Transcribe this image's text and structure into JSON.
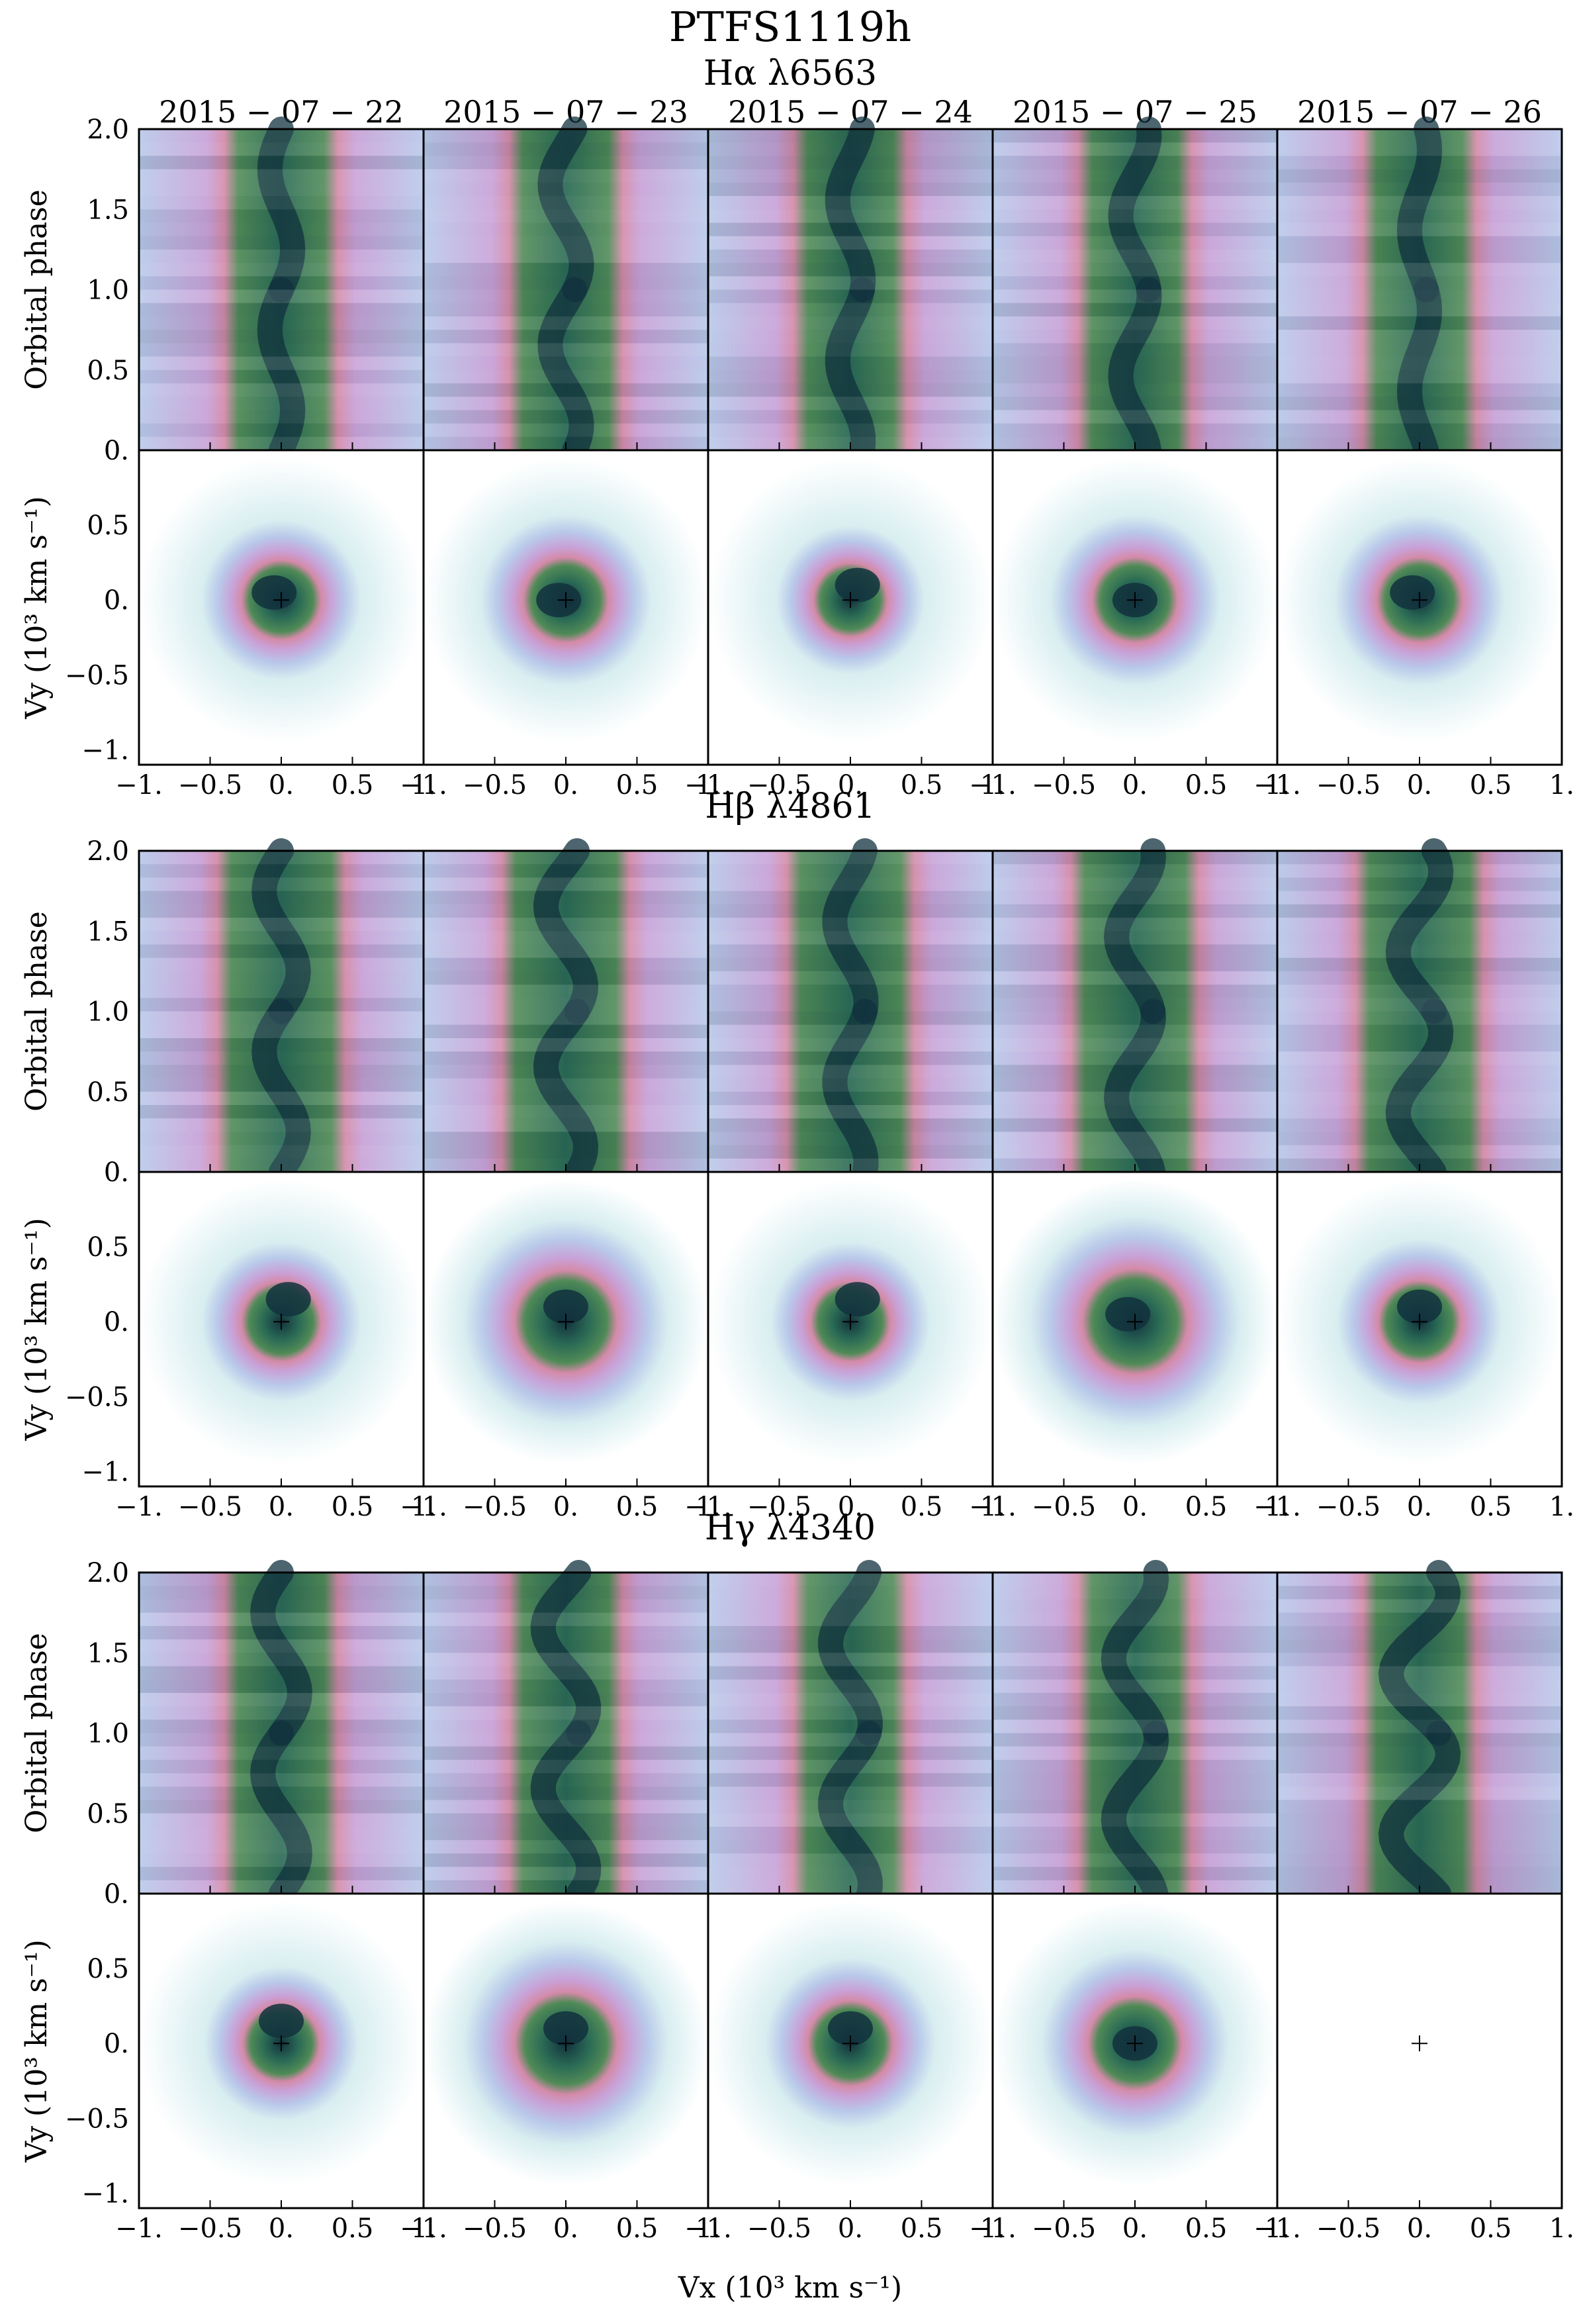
{
  "figure": {
    "title": "PTFS1119h",
    "dates": [
      "2015 − 07 − 22",
      "2015 − 07 − 23",
      "2015 − 07 − 24",
      "2015 − 07 − 25",
      "2015 − 07 − 26"
    ],
    "colormap": [
      "#ffffff",
      "#d8eef0",
      "#b9c9ea",
      "#c8a2d8",
      "#d48aa8",
      "#4f8a56",
      "#2a6a55",
      "#12313d"
    ],
    "marker": "+"
  },
  "chart_data": {
    "type": "heatmap",
    "title": "PTFS1119h",
    "panels_per_line": 5,
    "lines": [
      {
        "name": "Hα λ6563",
        "label": "Hα λ6563",
        "trailed_spectra": {
          "ylabel": "Orbital phase",
          "ylim": [
            0.0,
            2.0
          ],
          "yticks": [
            "0.",
            "0.5",
            "1.0",
            "1.5",
            "2.0"
          ],
          "xlim": [
            -1.0,
            1.0
          ],
          "emission_halfwidth_kms": 400,
          "s_wave_amplitude_kms": [
            80,
            110,
            90,
            100,
            70
          ]
        },
        "doppler_maps": {
          "ylabel": "Vy (10³ km s⁻¹)",
          "ylim": [
            -1.1,
            1.0
          ],
          "yticks": [
            "−1.",
            "−0.5",
            "0.",
            "0.5"
          ],
          "xlim": [
            -1.0,
            1.0
          ],
          "ring_radius_kms": [
            280,
            300,
            260,
            300,
            300
          ],
          "bright_spot_vxvy": [
            [
              -0.05,
              0.05
            ],
            [
              -0.05,
              0.0
            ],
            [
              0.05,
              0.1
            ],
            [
              0.0,
              0.0
            ],
            [
              -0.05,
              0.05
            ]
          ],
          "empty": [
            false,
            false,
            false,
            false,
            false
          ]
        }
      },
      {
        "name": "Hβ λ4861",
        "label": "Hβ λ4861",
        "trailed_spectra": {
          "ylabel": "Orbital phase",
          "ylim": [
            0.0,
            2.0
          ],
          "yticks": [
            "0.",
            "0.5",
            "1.0",
            "1.5",
            "2.0"
          ],
          "xlim": [
            -1.0,
            1.0
          ],
          "emission_halfwidth_kms": 450,
          "s_wave_amplitude_kms": [
            120,
            140,
            110,
            130,
            150
          ]
        },
        "doppler_maps": {
          "ylabel": "Vy (10³ km s⁻¹)",
          "ylim": [
            -1.1,
            1.0
          ],
          "yticks": [
            "−1.",
            "−0.5",
            "0.",
            "0.5"
          ],
          "xlim": [
            -1.0,
            1.0
          ],
          "ring_radius_kms": [
            280,
            360,
            280,
            370,
            290
          ],
          "bright_spot_vxvy": [
            [
              0.05,
              0.15
            ],
            [
              0.0,
              0.1
            ],
            [
              0.05,
              0.15
            ],
            [
              -0.05,
              0.05
            ],
            [
              0.0,
              0.1
            ]
          ],
          "empty": [
            false,
            false,
            false,
            false,
            false
          ]
        }
      },
      {
        "name": "Hγ λ4340",
        "label": "Hγ λ4340",
        "trailed_spectra": {
          "ylabel": "Orbital phase",
          "ylim": [
            0.0,
            2.0
          ],
          "yticks": [
            "0.",
            "0.5",
            "1.0",
            "1.5",
            "2.0"
          ],
          "xlim": [
            -1.0,
            1.0
          ],
          "emission_halfwidth_kms": 400,
          "s_wave_amplitude_kms": [
            130,
            160,
            140,
            150,
            200
          ]
        },
        "doppler_maps": {
          "ylabel": "Vy (10³ km s⁻¹)",
          "ylim": [
            -1.1,
            1.0
          ],
          "yticks": [
            "−1.",
            "−0.5",
            "0.",
            "0.5"
          ],
          "xlim": [
            -1.0,
            1.0
          ],
          "ring_radius_kms": [
            270,
            360,
            300,
            330,
            0
          ],
          "bright_spot_vxvy": [
            [
              0.0,
              0.15
            ],
            [
              0.0,
              0.1
            ],
            [
              0.0,
              0.1
            ],
            [
              0.0,
              0.0
            ],
            [
              0.0,
              0.0
            ]
          ],
          "empty": [
            false,
            false,
            false,
            false,
            true
          ]
        }
      }
    ],
    "xticks": [
      "−1.",
      "−0.5",
      "0.",
      "0.5",
      "1."
    ],
    "xlabel": "Vx (10³ km s⁻¹)"
  }
}
